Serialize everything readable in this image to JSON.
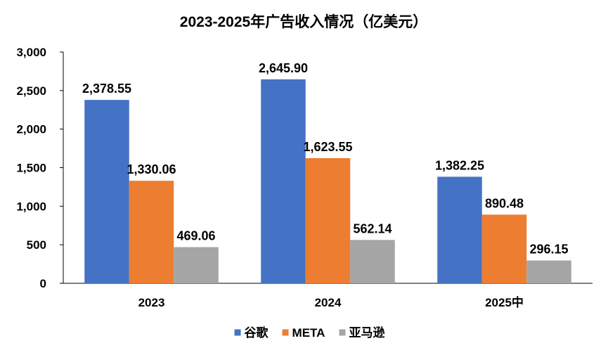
{
  "chart_data": {
    "type": "bar",
    "title": "2023-2025年广告收入情况（亿美元）",
    "categories": [
      "2023",
      "2024",
      "2025中"
    ],
    "series": [
      {
        "name": "谷歌",
        "color": "#4472C4",
        "values": [
          2378.55,
          2645.9,
          1382.25
        ],
        "labels": [
          "2,378.55",
          "2,645.90",
          "1,382.25"
        ]
      },
      {
        "name": "META",
        "color": "#ED7D31",
        "values": [
          1330.06,
          1623.55,
          890.48
        ],
        "labels": [
          "1,330.06",
          "1,623.55",
          "890.48"
        ]
      },
      {
        "name": "亚马逊",
        "color": "#A5A5A5",
        "values": [
          469.06,
          562.14,
          296.15
        ],
        "labels": [
          "469.06",
          "562.14",
          "296.15"
        ]
      }
    ],
    "y_ticks": [
      "0",
      "500",
      "1,000",
      "1,500",
      "2,000",
      "2,500",
      "3,000"
    ],
    "ylim": [
      0,
      3000
    ],
    "xlabel": "",
    "ylabel": "",
    "legend": "bottom",
    "grid": false
  }
}
